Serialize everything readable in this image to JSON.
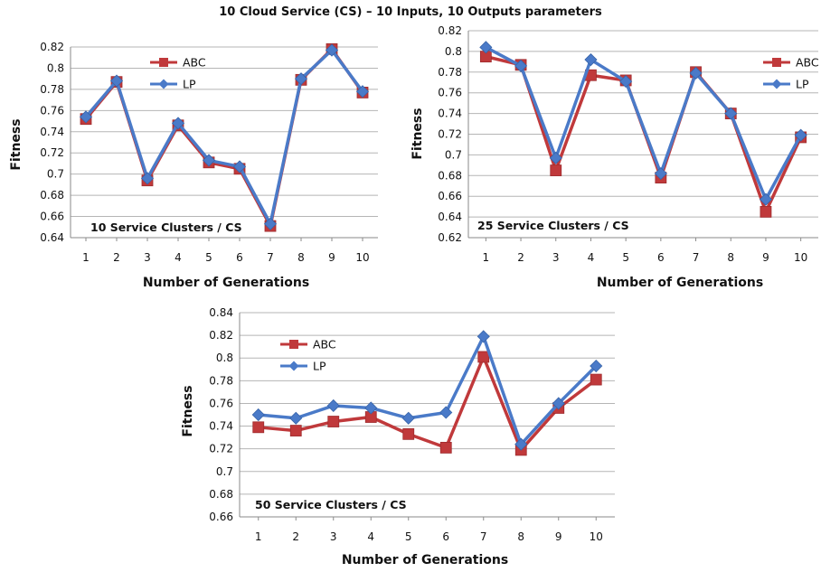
{
  "page": {
    "title": "10 Cloud Service (CS) – 10 Inputs, 10 Outputs parameters"
  },
  "colors": {
    "abc": "#c0393b",
    "lp": "#4a7ac8",
    "grid": "#b5b5b5"
  },
  "chart_data": [
    {
      "type": "line",
      "annotation": "10 Service Clusters / CS",
      "xlabel": "Number of Generations",
      "ylabel": "Fitness",
      "categories": [
        "1",
        "2",
        "3",
        "4",
        "5",
        "6",
        "7",
        "8",
        "9",
        "10"
      ],
      "ylim": [
        0.64,
        0.82
      ],
      "yticks": [
        "0.64",
        "0.66",
        "0.68",
        "0.7",
        "0.72",
        "0.74",
        "0.76",
        "0.78",
        "0.8",
        "0.82"
      ],
      "grid": true,
      "legend": "top-left",
      "series": [
        {
          "name": "ABC",
          "values": [
            0.752,
            0.787,
            0.694,
            0.746,
            0.711,
            0.705,
            0.651,
            0.789,
            0.818,
            0.777
          ]
        },
        {
          "name": "LP",
          "values": [
            0.754,
            0.788,
            0.696,
            0.748,
            0.713,
            0.707,
            0.653,
            0.79,
            0.817,
            0.778
          ]
        }
      ]
    },
    {
      "type": "line",
      "annotation": "25 Service Clusters / CS",
      "xlabel": "Number of Generations",
      "ylabel": "Fitness",
      "categories": [
        "1",
        "2",
        "3",
        "4",
        "5",
        "6",
        "7",
        "8",
        "9",
        "10"
      ],
      "ylim": [
        0.62,
        0.82
      ],
      "yticks": [
        "0.62",
        "0.64",
        "0.66",
        "0.68",
        "0.7",
        "0.72",
        "0.74",
        "0.76",
        "0.78",
        "0.8",
        "0.82"
      ],
      "grid": true,
      "legend": "right",
      "series": [
        {
          "name": "ABC",
          "values": [
            0.795,
            0.787,
            0.685,
            0.777,
            0.772,
            0.678,
            0.78,
            0.74,
            0.645,
            0.717
          ]
        },
        {
          "name": "LP",
          "values": [
            0.804,
            0.786,
            0.697,
            0.792,
            0.771,
            0.682,
            0.779,
            0.74,
            0.657,
            0.719
          ]
        }
      ]
    },
    {
      "type": "line",
      "annotation": "50 Service Clusters / CS",
      "xlabel": "Number of Generations",
      "ylabel": "Fitness",
      "categories": [
        "1",
        "2",
        "3",
        "4",
        "5",
        "6",
        "7",
        "8",
        "9",
        "10"
      ],
      "ylim": [
        0.66,
        0.84
      ],
      "yticks": [
        "0.66",
        "0.68",
        "0.7",
        "0.72",
        "0.74",
        "0.76",
        "0.78",
        "0.8",
        "0.82",
        "0.84"
      ],
      "grid": true,
      "legend": "top-left",
      "series": [
        {
          "name": "ABC",
          "values": [
            0.739,
            0.736,
            0.744,
            0.748,
            0.733,
            0.721,
            0.801,
            0.719,
            0.756,
            0.781
          ]
        },
        {
          "name": "LP",
          "values": [
            0.75,
            0.747,
            0.758,
            0.756,
            0.747,
            0.752,
            0.819,
            0.724,
            0.76,
            0.793
          ]
        }
      ]
    }
  ]
}
